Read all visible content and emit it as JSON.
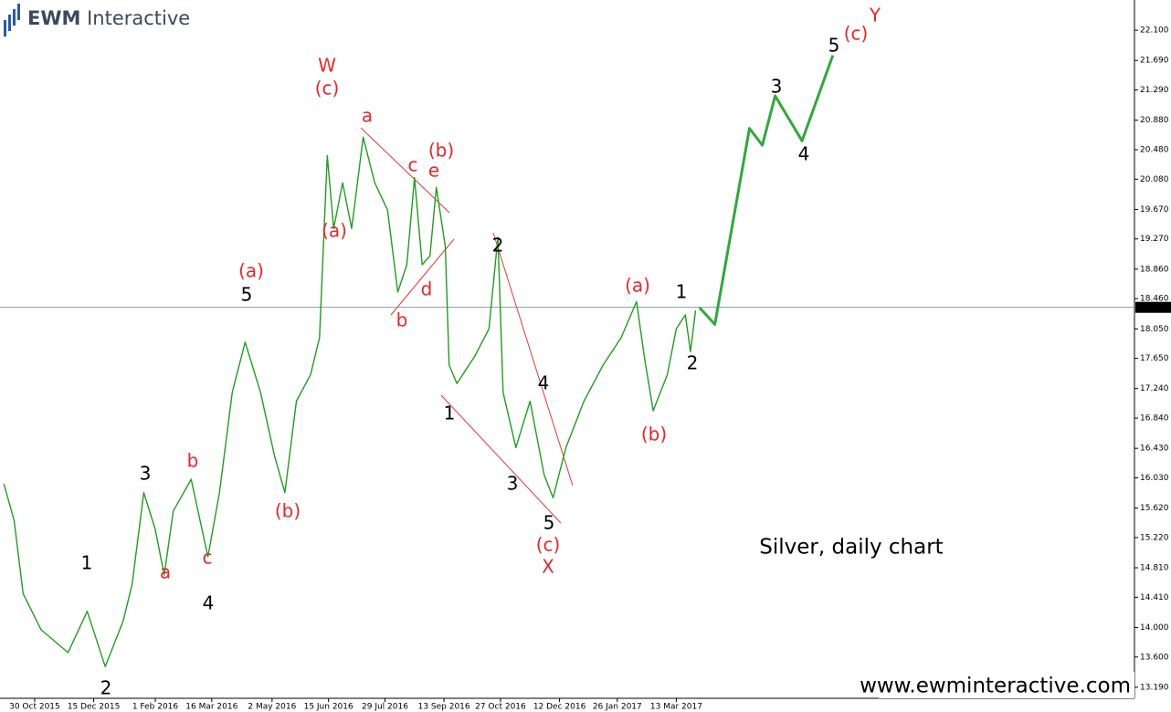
{
  "logo": {
    "bold": "EWM",
    "rest": "Interactive"
  },
  "chart_data": {
    "type": "line",
    "title": "Silver, daily chart",
    "footer": "www.ewminteractive.com",
    "series": [
      {
        "color": "#1f9e1f",
        "x": [
          "2015-10-06",
          "2015-10-14",
          "2015-10-21",
          "2015-11-04",
          "2015-11-25",
          "2015-12-10",
          "2015-12-24",
          "2016-01-07",
          "2016-01-14",
          "2016-01-23",
          "2016-02-01",
          "2016-02-08",
          "2016-02-15",
          "2016-02-29",
          "2016-03-13",
          "2016-03-22",
          "2016-04-01",
          "2016-04-11",
          "2016-04-23",
          "2016-05-04",
          "2016-05-12",
          "2016-05-21",
          "2016-06-01",
          "2016-06-08",
          "2016-06-14",
          "2016-06-19",
          "2016-06-26",
          "2016-07-03",
          "2016-07-12",
          "2016-07-21",
          "2016-07-31",
          "2016-08-08",
          "2016-08-15",
          "2016-08-21",
          "2016-08-27",
          "2016-09-02",
          "2016-09-07",
          "2016-09-14",
          "2016-09-17",
          "2016-09-23",
          "2016-10-07",
          "2016-10-18",
          "2016-10-25",
          "2016-10-29",
          "2016-11-08",
          "2016-11-19",
          "2016-11-30",
          "2016-12-07",
          "2016-12-17",
          "2016-12-31",
          "2017-01-15",
          "2017-01-29",
          "2017-02-10",
          "2017-02-16",
          "2017-02-23",
          "2017-03-06",
          "2017-03-13",
          "2017-03-20",
          "2017-03-24",
          "2017-03-28"
        ],
        "values": [
          15.95,
          15.45,
          14.46,
          13.97,
          13.66,
          14.22,
          13.47,
          14.09,
          14.59,
          15.83,
          15.33,
          14.71,
          15.58,
          16.01,
          14.96,
          15.83,
          17.19,
          17.87,
          17.19,
          16.32,
          15.83,
          17.07,
          17.43,
          17.93,
          20.4,
          19.41,
          20.03,
          19.41,
          20.65,
          20.03,
          19.66,
          18.55,
          18.92,
          20.1,
          18.92,
          19.04,
          19.97,
          19.17,
          17.56,
          17.31,
          17.68,
          18.05,
          19.29,
          17.19,
          16.44,
          17.07,
          16.07,
          15.76,
          16.44,
          17.07,
          17.56,
          17.93,
          18.42,
          17.68,
          16.94,
          17.43,
          18.05,
          18.24,
          17.74,
          18.3
        ]
      },
      {
        "color": "#2eaa3a",
        "x": [
          "2017-03-31",
          "2017-04-12",
          "2017-05-09",
          "2017-05-19",
          "2017-05-29",
          "2017-06-19",
          "2017-07-13"
        ],
        "values": [
          18.34,
          18.11,
          20.77,
          20.54,
          21.21,
          20.6,
          21.76
        ]
      }
    ],
    "last_price": {
      "value": 18.342,
      "label": "18.342"
    },
    "xlim": [
      "2015-10-03",
      "2018-03-05"
    ],
    "xticks": [
      {
        "value": "2015-10-30",
        "label": "30 Oct 2015"
      },
      {
        "value": "2015-12-15",
        "label": "15 Dec 2015"
      },
      {
        "value": "2016-02-01",
        "label": "1 Feb 2016"
      },
      {
        "value": "2016-03-16",
        "label": "16 Mar 2016"
      },
      {
        "value": "2016-05-02",
        "label": "2 May 2016"
      },
      {
        "value": "2016-06-15",
        "label": "15 Jun 2016"
      },
      {
        "value": "2016-07-29",
        "label": "29 Jul 2016"
      },
      {
        "value": "2016-09-13",
        "label": "13 Sep 2016"
      },
      {
        "value": "2016-10-27",
        "label": "27 Oct 2016"
      },
      {
        "value": "2016-12-12",
        "label": "12 Dec 2016"
      },
      {
        "value": "2017-01-26",
        "label": "26 Jan 2017"
      },
      {
        "value": "2017-03-13",
        "label": "13 Mar 2017"
      }
    ],
    "ylim": [
      13.04,
      22.51
    ],
    "yticks": [
      {
        "value": 22.1,
        "label": "22.100"
      },
      {
        "value": 21.69,
        "label": "21.690"
      },
      {
        "value": 21.29,
        "label": "21.290"
      },
      {
        "value": 20.88,
        "label": "20.880"
      },
      {
        "value": 20.48,
        "label": "20.480"
      },
      {
        "value": 20.08,
        "label": "20.080"
      },
      {
        "value": 19.67,
        "label": "19.670"
      },
      {
        "value": 19.27,
        "label": "19.270"
      },
      {
        "value": 18.86,
        "label": "18.860"
      },
      {
        "value": 18.46,
        "label": "18.460"
      },
      {
        "value": 18.05,
        "label": "18.050"
      },
      {
        "value": 17.65,
        "label": "17.650"
      },
      {
        "value": 17.24,
        "label": "17.240"
      },
      {
        "value": 16.84,
        "label": "16.840"
      },
      {
        "value": 16.43,
        "label": "16.430"
      },
      {
        "value": 16.03,
        "label": "16.030"
      },
      {
        "value": 15.62,
        "label": "15.620"
      },
      {
        "value": 15.22,
        "label": "15.220"
      },
      {
        "value": 14.81,
        "label": "14.810"
      },
      {
        "value": 14.41,
        "label": "14.410"
      },
      {
        "value": 14,
        "label": "14.000"
      },
      {
        "value": 13.6,
        "label": "13.600"
      },
      {
        "value": 13.19,
        "label": "13.190"
      }
    ],
    "annotations": [
      {
        "text": "W",
        "color": "#e8262a"
      },
      {
        "text": "(c)",
        "color": "#e8262a"
      },
      {
        "text": "a",
        "color": "#e8262a"
      },
      {
        "text": "(b)",
        "color": "#e8262a"
      },
      {
        "text": "c",
        "color": "#e8262a"
      },
      {
        "text": "e",
        "color": "#e8262a"
      },
      {
        "text": "(a)",
        "color": "#e8262a"
      },
      {
        "text": "b",
        "color": "#e8262a"
      },
      {
        "text": "d",
        "color": "#e8262a"
      },
      {
        "text": "2",
        "color": "#000000"
      },
      {
        "text": "1",
        "color": "#000000"
      },
      {
        "text": "4",
        "color": "#000000"
      },
      {
        "text": "3",
        "color": "#000000"
      },
      {
        "text": "5",
        "color": "#000000"
      },
      {
        "text": "(c)",
        "color": "#e8262a"
      },
      {
        "text": "X",
        "color": "#e8262a"
      },
      {
        "text": "(a)",
        "color": "#e8262a"
      },
      {
        "text": "1",
        "color": "#000000"
      },
      {
        "text": "2",
        "color": "#000000"
      },
      {
        "text": "(b)",
        "color": "#e8262a"
      },
      {
        "text": "(a)",
        "color": "#e8262a"
      },
      {
        "text": "5",
        "color": "#000000"
      },
      {
        "text": "(b)",
        "color": "#e8262a"
      },
      {
        "text": "3",
        "color": "#000000"
      },
      {
        "text": "b",
        "color": "#e8262a"
      },
      {
        "text": "a",
        "color": "#e8262a"
      },
      {
        "text": "c",
        "color": "#e8262a"
      },
      {
        "text": "4",
        "color": "#000000"
      },
      {
        "text": "1",
        "color": "#000000"
      },
      {
        "text": "2",
        "color": "#000000"
      },
      {
        "text": "3",
        "color": "#000000"
      },
      {
        "text": "4",
        "color": "#000000"
      },
      {
        "text": "5",
        "color": "#000000"
      },
      {
        "text": "(c)",
        "color": "#e8262a"
      },
      {
        "text": "Y",
        "color": "#e8262a"
      }
    ]
  }
}
